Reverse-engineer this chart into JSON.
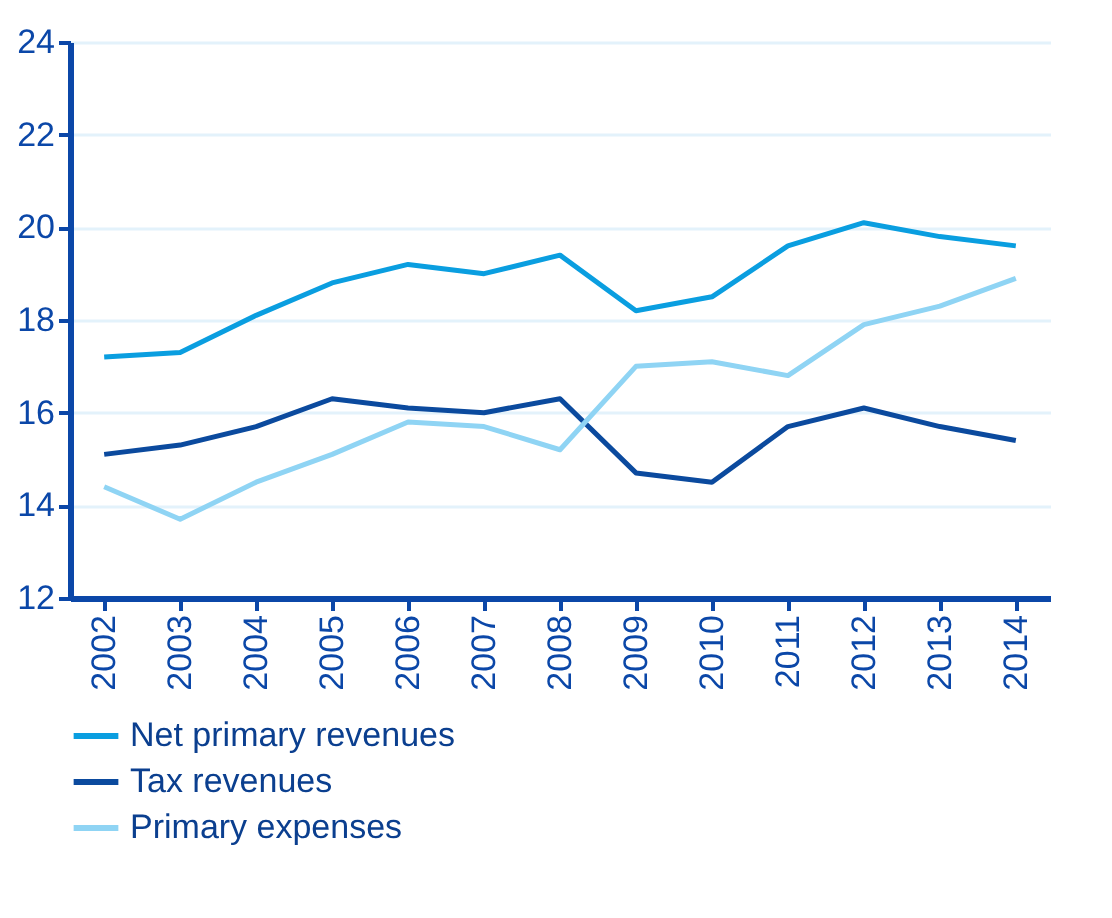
{
  "chart_data": {
    "type": "line",
    "categories": [
      "2002",
      "2003",
      "2004",
      "2005",
      "2006",
      "2007",
      "2008",
      "2009",
      "2010",
      "2011",
      "2012",
      "2013",
      "2014"
    ],
    "series": [
      {
        "name": "Net primary revenues",
        "color": "#0a9ee0",
        "values": [
          17.2,
          17.3,
          18.1,
          18.8,
          19.2,
          19.0,
          19.4,
          18.2,
          18.5,
          19.6,
          20.1,
          19.8,
          19.6
        ]
      },
      {
        "name": "Tax revenues",
        "color": "#0b4a9e",
        "values": [
          15.1,
          15.3,
          15.7,
          16.3,
          16.1,
          16.0,
          16.3,
          14.7,
          14.5,
          15.7,
          16.1,
          15.7,
          15.4
        ]
      },
      {
        "name": "Primary expenses",
        "color": "#8fd4f4",
        "values": [
          14.4,
          13.7,
          14.5,
          15.1,
          15.8,
          15.7,
          15.2,
          17.0,
          17.1,
          16.8,
          17.9,
          18.3,
          18.9
        ]
      }
    ],
    "ylim": [
      12,
      24
    ],
    "yticks": [
      12,
      14,
      16,
      18,
      20,
      22,
      24
    ],
    "grid": "y",
    "legend": "bottom",
    "marker": "none",
    "line_style": "solid"
  }
}
